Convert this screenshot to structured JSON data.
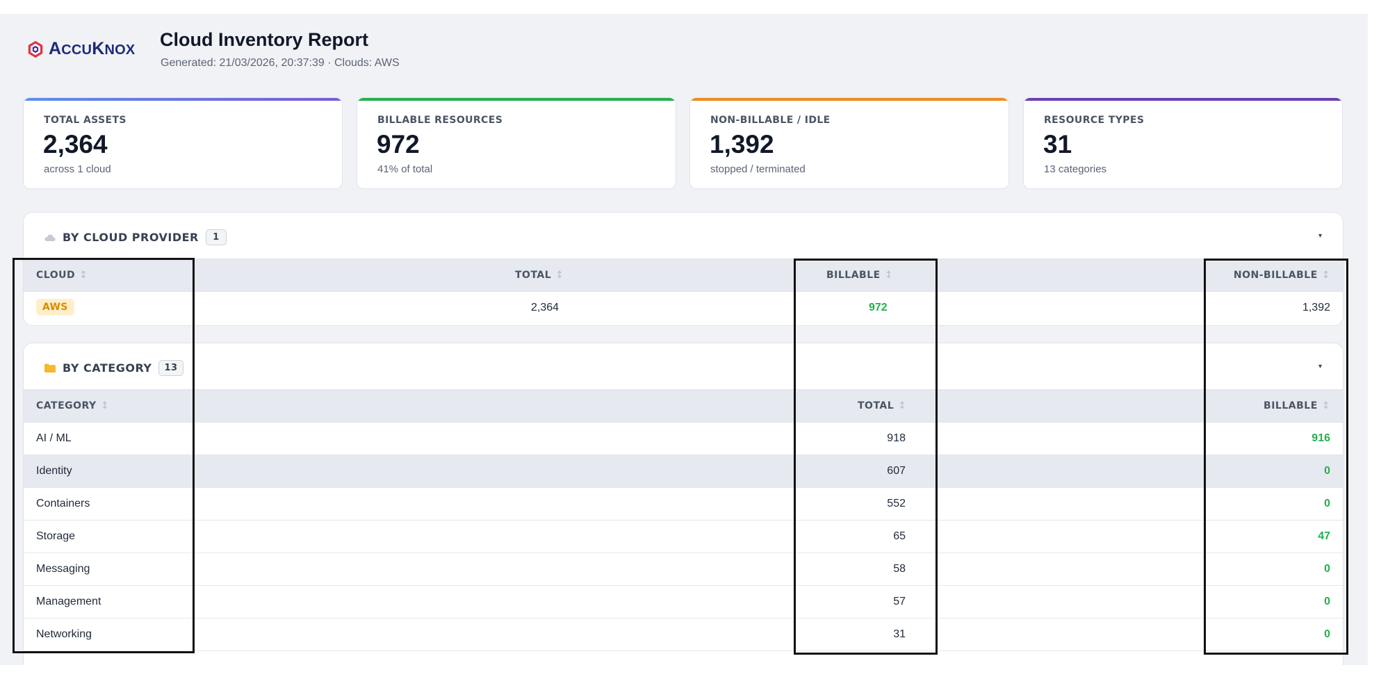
{
  "brand": {
    "logo_text_big_a": "A",
    "logo_text_rest_1": "CCU",
    "logo_text_big_k": "K",
    "logo_text_rest_2": "NOX"
  },
  "header": {
    "title": "Cloud Inventory Report",
    "subtitle": "Generated: 21/03/2026, 20:37:39 · Clouds: AWS"
  },
  "stats": [
    {
      "label": "TOTAL ASSETS",
      "value": "2,364",
      "sub": "across 1 cloud",
      "color": "#6b72e8"
    },
    {
      "label": "BILLABLE RESOURCES",
      "value": "972",
      "sub": "41% of total",
      "color": "#22b14c"
    },
    {
      "label": "NON-BILLABLE / IDLE",
      "value": "1,392",
      "sub": "stopped / terminated",
      "color": "#f08c1e"
    },
    {
      "label": "RESOURCE TYPES",
      "value": "31",
      "sub": "13 categories",
      "color": "#6b3fb0"
    }
  ],
  "by_cloud": {
    "title": "BY CLOUD PROVIDER",
    "count": "1",
    "icon": "cloud-icon",
    "columns": [
      "CLOUD",
      "TOTAL",
      "BILLABLE",
      "NON-BILLABLE"
    ],
    "rows": [
      {
        "cloud": "AWS",
        "total": "2,364",
        "billable": "972",
        "non_billable": "1,392"
      }
    ]
  },
  "by_category": {
    "title": "BY CATEGORY",
    "count": "13",
    "icon": "folder-icon",
    "columns": [
      "CATEGORY",
      "TOTAL",
      "BILLABLE"
    ],
    "rows": [
      {
        "category": "AI / ML",
        "total": "918",
        "billable": "916"
      },
      {
        "category": "Identity",
        "total": "607",
        "billable": "0"
      },
      {
        "category": "Containers",
        "total": "552",
        "billable": "0"
      },
      {
        "category": "Storage",
        "total": "65",
        "billable": "47"
      },
      {
        "category": "Messaging",
        "total": "58",
        "billable": "0"
      },
      {
        "category": "Management",
        "total": "57",
        "billable": "0"
      },
      {
        "category": "Networking",
        "total": "31",
        "billable": "0"
      }
    ]
  },
  "sort_glyph": "↕",
  "caret_glyph": "▾"
}
